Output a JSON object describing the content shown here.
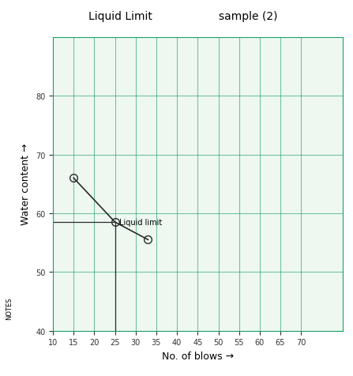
{
  "chart_data": {
    "type": "line",
    "title": "Liquid Limit",
    "subtitle": "sample (2)",
    "x_label": "No. of blows →",
    "y_label": "Water content →",
    "side_note": "NOTES",
    "series": [
      {
        "name": "Liquid Limit",
        "color": "#2a2a2a",
        "marker": "o",
        "line_style": "solid",
        "x": [
          15,
          25,
          33
        ],
        "values": [
          66,
          58.5,
          55.5
        ]
      }
    ],
    "annotations": [
      {
        "text": "Liquid limit",
        "x": 25,
        "y": 58.5
      }
    ],
    "xlim": [
      10,
      80
    ],
    "xticks": [
      10,
      15,
      20,
      25,
      30,
      35,
      40,
      45,
      50,
      55,
      60,
      65,
      70
    ],
    "ylim": [
      40,
      90
    ],
    "yticks": [
      40,
      50,
      60,
      70,
      80
    ],
    "grid": true,
    "color": "#1f9e6a"
  }
}
